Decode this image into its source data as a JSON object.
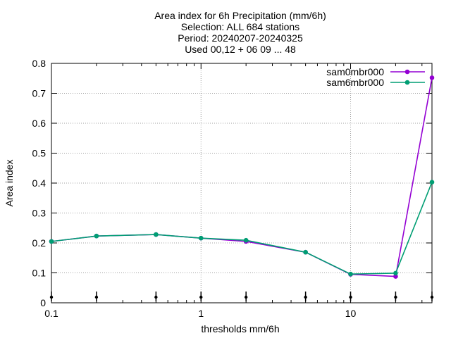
{
  "chart_data": {
    "type": "line",
    "title_lines": [
      "Area index  for 6h Precipitation (mm/6h)",
      "Selection: ALL    684 stations",
      "Period: 20240207-20240325",
      "Used 00,12 + 06 09 ... 48"
    ],
    "xlabel": "thresholds mm/6h",
    "ylabel": "Area index",
    "x_scale": "log",
    "xlim": [
      0.1,
      35
    ],
    "ylim": [
      0,
      0.8
    ],
    "x_ticks": [
      0.1,
      1,
      10
    ],
    "x_tick_labels": [
      "0.1",
      "1",
      "10"
    ],
    "x_minor_ticks": [
      0.2,
      0.5,
      2,
      5,
      20
    ],
    "y_ticks": [
      0,
      0.1,
      0.2,
      0.3,
      0.4,
      0.5,
      0.6,
      0.7,
      0.8
    ],
    "y_tick_labels": [
      "0",
      "0.1",
      "0.2",
      "0.3",
      "0.4",
      "0.5",
      "0.6",
      "0.7",
      "0.8"
    ],
    "grid": true,
    "legend_position": "top-right",
    "x": [
      0.1,
      0.2,
      0.5,
      1,
      2,
      5,
      10,
      20,
      35
    ],
    "marker_x": [
      0.1,
      0.2,
      0.5,
      1,
      2,
      5,
      10,
      20,
      35
    ],
    "series": [
      {
        "name": "sam0mbr000",
        "color": "#9400d3",
        "values": [
          0.205,
          0.223,
          0.228,
          0.216,
          0.205,
          0.169,
          0.095,
          0.088,
          0.752
        ]
      },
      {
        "name": "sam6mbr000",
        "color": "#009e73",
        "values": [
          0.205,
          0.223,
          0.228,
          0.216,
          0.209,
          0.169,
          0.096,
          0.099,
          0.403
        ]
      }
    ]
  }
}
